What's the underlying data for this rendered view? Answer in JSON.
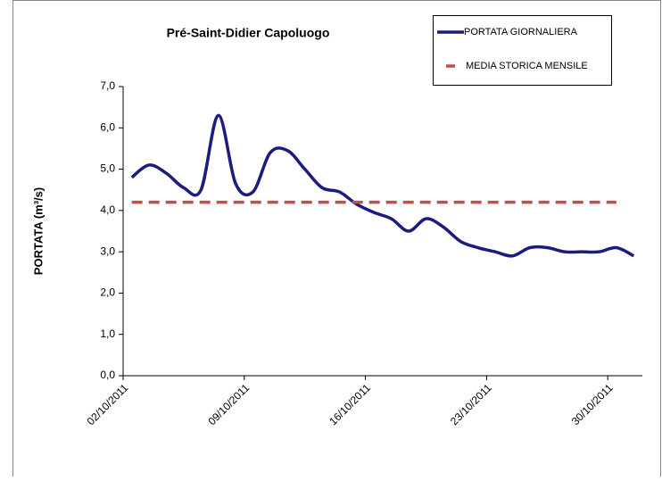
{
  "chart_data": {
    "type": "line",
    "title": "Pré-Saint-Didier Capoluogo",
    "ylabel": "PORTATA (m³/s)",
    "categories": [
      "02/10/2011",
      null,
      null,
      null,
      null,
      null,
      null,
      "09/10/2011",
      null,
      null,
      null,
      null,
      null,
      null,
      "16/10/2011",
      null,
      null,
      null,
      null,
      null,
      null,
      "23/10/2011",
      null,
      null,
      null,
      null,
      null,
      null,
      "30/10/2011",
      null
    ],
    "series": [
      {
        "name": "PORTATA GIORNALIERA",
        "color": "#1c1c80",
        "style": "solid",
        "values": [
          4.8,
          5.1,
          4.9,
          4.55,
          4.5,
          6.3,
          4.65,
          4.45,
          5.4,
          5.45,
          5.0,
          4.55,
          4.45,
          4.15,
          3.95,
          3.8,
          3.5,
          3.8,
          3.6,
          3.25,
          3.1,
          3.0,
          2.9,
          3.1,
          3.1,
          3.0,
          3.0,
          3.0,
          3.1,
          2.9
        ]
      },
      {
        "name": "MEDIA STORICA MENSILE",
        "color": "#c0504d",
        "style": "dashed",
        "values": [
          4.2,
          4.2,
          4.2,
          4.2,
          4.2,
          4.2,
          4.2,
          4.2,
          4.2,
          4.2,
          4.2,
          4.2,
          4.2,
          4.2,
          4.2,
          4.2,
          4.2,
          4.2,
          4.2,
          4.2,
          4.2,
          4.2,
          4.2,
          4.2,
          4.2,
          4.2,
          4.2,
          4.2,
          4.2,
          null
        ]
      }
    ],
    "ylim": [
      0,
      7
    ],
    "yticks": [
      {
        "value": 0,
        "label": "0,0"
      },
      {
        "value": 1,
        "label": "1,0"
      },
      {
        "value": 2,
        "label": "2,0"
      },
      {
        "value": 3,
        "label": "3,0"
      },
      {
        "value": 4,
        "label": "4,0"
      },
      {
        "value": 5,
        "label": "5,0"
      },
      {
        "value": 6,
        "label": "6,0"
      },
      {
        "value": 7,
        "label": "7,0"
      }
    ],
    "legend": "top-right"
  }
}
